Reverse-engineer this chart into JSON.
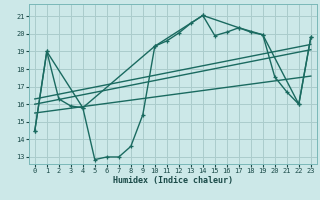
{
  "xlabel": "Humidex (Indice chaleur)",
  "bg_color": "#cce8e8",
  "grid_color": "#aacccc",
  "line_color": "#1a6a60",
  "xlim": [
    -0.5,
    23.5
  ],
  "ylim": [
    12.6,
    21.7
  ],
  "yticks": [
    13,
    14,
    15,
    16,
    17,
    18,
    19,
    20,
    21
  ],
  "xticks": [
    0,
    1,
    2,
    3,
    4,
    5,
    6,
    7,
    8,
    9,
    10,
    11,
    12,
    13,
    14,
    15,
    16,
    17,
    18,
    19,
    20,
    21,
    22,
    23
  ],
  "line1_x": [
    0,
    1,
    2,
    3,
    4,
    5,
    6,
    7,
    8,
    9,
    10,
    11,
    12,
    13,
    14,
    15,
    16,
    17,
    18,
    19,
    20,
    21,
    22,
    23
  ],
  "line1_y": [
    14.5,
    19.0,
    16.3,
    15.9,
    15.8,
    12.85,
    13.0,
    13.0,
    13.6,
    15.4,
    19.3,
    19.6,
    20.05,
    20.6,
    21.05,
    19.9,
    20.1,
    20.35,
    20.1,
    19.95,
    17.55,
    16.7,
    16.0,
    19.8
  ],
  "line2_x": [
    0,
    1,
    4,
    10,
    14,
    17,
    19,
    22,
    23
  ],
  "line2_y": [
    14.5,
    19.0,
    15.8,
    19.3,
    21.05,
    20.35,
    19.95,
    16.0,
    19.8
  ],
  "trend1_x": [
    0,
    23
  ],
  "trend1_y": [
    16.3,
    19.4
  ],
  "trend2_x": [
    0,
    23
  ],
  "trend2_y": [
    16.0,
    19.1
  ],
  "trend3_x": [
    0,
    23
  ],
  "trend3_y": [
    15.5,
    17.6
  ]
}
